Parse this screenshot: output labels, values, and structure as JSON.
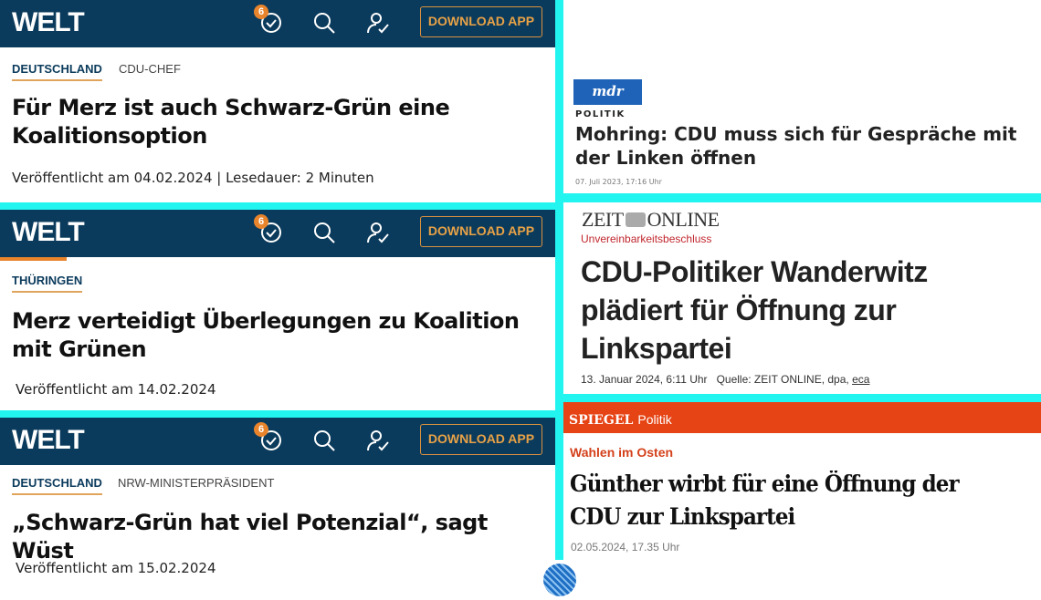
{
  "welt": {
    "logo": "WELT",
    "badge_count": "6",
    "download": "DOWNLOAD APP",
    "articles": [
      {
        "kicker": "DEUTSCHLAND",
        "sub": "CDU-CHEF",
        "title": "Für Merz ist auch Schwarz-Grün eine Koalitionsoption",
        "meta": "Veröffentlicht am 04.02.2024 | Lesedauer: 2 Minuten"
      },
      {
        "kicker": "THÜRINGEN",
        "sub": "",
        "title": "Merz verteidigt Überlegungen zu Koalition mit Grünen",
        "meta": "Veröffentlicht am 14.02.2024"
      },
      {
        "kicker": "DEUTSCHLAND",
        "sub": "NRW-MINISTERPRÄSIDENT",
        "title": "„Schwarz-Grün hat viel Potenzial“, sagt Wüst",
        "meta": "Veröffentlicht am 15.02.2024"
      }
    ]
  },
  "mdr": {
    "logo": "mdr",
    "section": "POLITIK",
    "title": "Mohring: CDU muss sich für Gespräche mit der Linken öffnen",
    "meta": "07. Juli 2023, 17:16 Uhr"
  },
  "zeit": {
    "logo_left": "ZEIT",
    "logo_right": "ONLINE",
    "kicker": "Unvereinbarkeitsbeschluss",
    "title": "CDU-Politiker Wanderwitz plädiert für Öffnung zur Linkspartei",
    "date": "13. Januar 2024, 6:11 Uhr",
    "source": "Quelle: ZEIT ONLINE, dpa,",
    "author": "eca"
  },
  "spiegel": {
    "logo": "SPIEGEL",
    "section": "Politik",
    "kicker": "Wahlen im Osten",
    "title": "Günther wirbt für eine Öffnung der CDU zur Linkspartei",
    "meta": "02.05.2024, 17.35 Uhr"
  },
  "colors": {
    "welt_navy": "#0b3b5c",
    "welt_orange": "#e8842c",
    "divider_cyan": "#22f4f0",
    "mdr_blue": "#1e63b8",
    "spiegel_orange": "#e64415",
    "zeit_red": "#c0262d"
  }
}
